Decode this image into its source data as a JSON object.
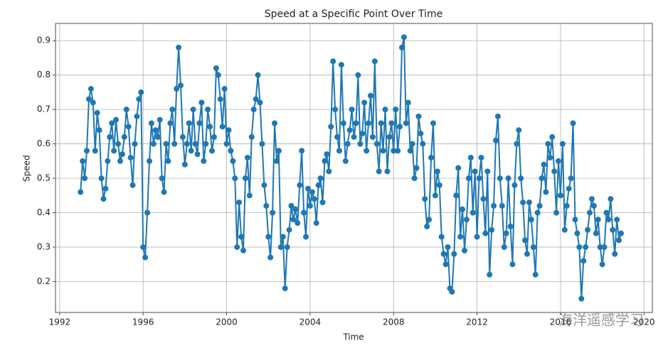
{
  "chart_data": {
    "type": "line",
    "title": "Speed at a Specific Point Over Time",
    "x_label": "Time",
    "y_label": "Speed",
    "xlim": [
      1991.8,
      2020.4
    ],
    "xticks": [
      1992,
      1996,
      2000,
      2004,
      2008,
      2012,
      2016,
      2020
    ],
    "ylim": [
      0.11,
      0.95
    ],
    "yticks": [
      0.2,
      0.3,
      0.4,
      0.5,
      0.6,
      0.7,
      0.8,
      0.9
    ],
    "grid": true,
    "watermark": "海洋遥感学习",
    "x": [
      1993.0,
      1993.1,
      1993.2,
      1993.3,
      1993.4,
      1993.5,
      1993.6,
      1993.7,
      1993.8,
      1993.9,
      1994.0,
      1994.1,
      1994.2,
      1994.3,
      1994.4,
      1994.5,
      1994.6,
      1994.7,
      1994.8,
      1994.9,
      1995.0,
      1995.1,
      1995.2,
      1995.3,
      1995.4,
      1995.5,
      1995.6,
      1995.7,
      1995.8,
      1995.9,
      1996.0,
      1996.1,
      1996.2,
      1996.3,
      1996.4,
      1996.5,
      1996.6,
      1996.7,
      1996.8,
      1996.9,
      1997.0,
      1997.1,
      1997.2,
      1997.3,
      1997.4,
      1997.5,
      1997.6,
      1997.7,
      1997.8,
      1997.9,
      1998.0,
      1998.1,
      1998.2,
      1998.3,
      1998.4,
      1998.5,
      1998.6,
      1998.7,
      1998.8,
      1998.9,
      1999.0,
      1999.1,
      1999.2,
      1999.3,
      1999.4,
      1999.5,
      1999.6,
      1999.7,
      1999.8,
      1999.9,
      2000.0,
      2000.1,
      2000.2,
      2000.3,
      2000.4,
      2000.5,
      2000.6,
      2000.7,
      2000.8,
      2000.9,
      2001.0,
      2001.1,
      2001.2,
      2001.3,
      2001.4,
      2001.5,
      2001.6,
      2001.7,
      2001.8,
      2001.9,
      2002.0,
      2002.1,
      2002.2,
      2002.3,
      2002.4,
      2002.5,
      2002.6,
      2002.7,
      2002.8,
      2002.9,
      2003.0,
      2003.1,
      2003.2,
      2003.3,
      2003.4,
      2003.5,
      2003.6,
      2003.7,
      2003.8,
      2003.9,
      2004.0,
      2004.1,
      2004.2,
      2004.3,
      2004.4,
      2004.5,
      2004.6,
      2004.7,
      2004.8,
      2004.9,
      2005.0,
      2005.1,
      2005.2,
      2005.3,
      2005.4,
      2005.5,
      2005.6,
      2005.7,
      2005.8,
      2005.9,
      2006.0,
      2006.1,
      2006.2,
      2006.3,
      2006.4,
      2006.5,
      2006.6,
      2006.7,
      2006.8,
      2006.9,
      2007.0,
      2007.1,
      2007.2,
      2007.3,
      2007.4,
      2007.5,
      2007.6,
      2007.7,
      2007.8,
      2007.9,
      2008.0,
      2008.1,
      2008.2,
      2008.3,
      2008.4,
      2008.5,
      2008.6,
      2008.7,
      2008.8,
      2008.9,
      2009.0,
      2009.1,
      2009.2,
      2009.3,
      2009.4,
      2009.5,
      2009.6,
      2009.7,
      2009.8,
      2009.9,
      2010.0,
      2010.1,
      2010.2,
      2010.3,
      2010.4,
      2010.5,
      2010.6,
      2010.7,
      2010.8,
      2010.9,
      2011.0,
      2011.1,
      2011.2,
      2011.3,
      2011.4,
      2011.5,
      2011.6,
      2011.7,
      2011.8,
      2011.9,
      2012.0,
      2012.1,
      2012.2,
      2012.3,
      2012.4,
      2012.5,
      2012.6,
      2012.7,
      2012.8,
      2012.9,
      2013.0,
      2013.1,
      2013.2,
      2013.3,
      2013.4,
      2013.5,
      2013.6,
      2013.7,
      2013.8,
      2013.9,
      2014.0,
      2014.1,
      2014.2,
      2014.3,
      2014.4,
      2014.5,
      2014.6,
      2014.7,
      2014.8,
      2014.9,
      2015.0,
      2015.1,
      2015.2,
      2015.3,
      2015.4,
      2015.5,
      2015.6,
      2015.7,
      2015.8,
      2015.9,
      2016.0,
      2016.1,
      2016.2,
      2016.3,
      2016.4,
      2016.5,
      2016.6,
      2016.7,
      2016.8,
      2016.9,
      2017.0,
      2017.1,
      2017.2,
      2017.3,
      2017.4,
      2017.5,
      2017.6,
      2017.7,
      2017.8,
      2017.9,
      2018.0,
      2018.1,
      2018.2,
      2018.3,
      2018.4,
      2018.5,
      2018.6,
      2018.7,
      2018.8,
      2018.9
    ],
    "series": [
      {
        "color": "#1f77b4",
        "values": [
          0.46,
          0.55,
          0.5,
          0.58,
          0.73,
          0.76,
          0.72,
          0.58,
          0.69,
          0.64,
          0.5,
          0.44,
          0.47,
          0.55,
          0.62,
          0.66,
          0.58,
          0.67,
          0.6,
          0.55,
          0.57,
          0.62,
          0.7,
          0.65,
          0.56,
          0.48,
          0.6,
          0.68,
          0.73,
          0.75,
          0.3,
          0.27,
          0.4,
          0.55,
          0.66,
          0.6,
          0.64,
          0.62,
          0.67,
          0.5,
          0.46,
          0.6,
          0.55,
          0.66,
          0.7,
          0.6,
          0.76,
          0.88,
          0.77,
          0.62,
          0.54,
          0.6,
          0.66,
          0.58,
          0.7,
          0.6,
          0.57,
          0.66,
          0.72,
          0.55,
          0.6,
          0.7,
          0.65,
          0.58,
          0.62,
          0.82,
          0.8,
          0.73,
          0.65,
          0.76,
          0.6,
          0.64,
          0.58,
          0.55,
          0.5,
          0.3,
          0.43,
          0.33,
          0.29,
          0.5,
          0.56,
          0.45,
          0.62,
          0.7,
          0.73,
          0.8,
          0.72,
          0.6,
          0.48,
          0.42,
          0.33,
          0.27,
          0.4,
          0.66,
          0.55,
          0.58,
          0.3,
          0.33,
          0.18,
          0.3,
          0.35,
          0.42,
          0.38,
          0.41,
          0.37,
          0.48,
          0.58,
          0.4,
          0.33,
          0.47,
          0.42,
          0.46,
          0.44,
          0.37,
          0.48,
          0.5,
          0.43,
          0.55,
          0.57,
          0.52,
          0.65,
          0.84,
          0.7,
          0.62,
          0.58,
          0.83,
          0.66,
          0.55,
          0.6,
          0.64,
          0.7,
          0.62,
          0.66,
          0.8,
          0.6,
          0.63,
          0.72,
          0.58,
          0.66,
          0.74,
          0.62,
          0.84,
          0.6,
          0.52,
          0.66,
          0.58,
          0.7,
          0.52,
          0.62,
          0.66,
          0.58,
          0.7,
          0.58,
          0.65,
          0.88,
          0.91,
          0.66,
          0.72,
          0.58,
          0.6,
          0.5,
          0.53,
          0.68,
          0.63,
          0.6,
          0.44,
          0.36,
          0.38,
          0.56,
          0.66,
          0.45,
          0.52,
          0.48,
          0.33,
          0.28,
          0.25,
          0.3,
          0.18,
          0.17,
          0.28,
          0.45,
          0.53,
          0.33,
          0.41,
          0.29,
          0.38,
          0.5,
          0.56,
          0.4,
          0.52,
          0.33,
          0.5,
          0.56,
          0.44,
          0.34,
          0.52,
          0.22,
          0.35,
          0.42,
          0.61,
          0.68,
          0.5,
          0.42,
          0.3,
          0.34,
          0.5,
          0.36,
          0.25,
          0.48,
          0.6,
          0.64,
          0.5,
          0.43,
          0.32,
          0.28,
          0.43,
          0.38,
          0.3,
          0.22,
          0.4,
          0.42,
          0.5,
          0.54,
          0.46,
          0.6,
          0.56,
          0.62,
          0.52,
          0.4,
          0.55,
          0.45,
          0.6,
          0.35,
          0.42,
          0.47,
          0.5,
          0.66,
          0.38,
          0.34,
          0.3,
          0.15,
          0.26,
          0.3,
          0.35,
          0.4,
          0.44,
          0.42,
          0.34,
          0.38,
          0.3,
          0.25,
          0.3,
          0.4,
          0.38,
          0.44,
          0.35,
          0.28,
          0.38,
          0.32,
          0.34
        ]
      }
    ]
  }
}
